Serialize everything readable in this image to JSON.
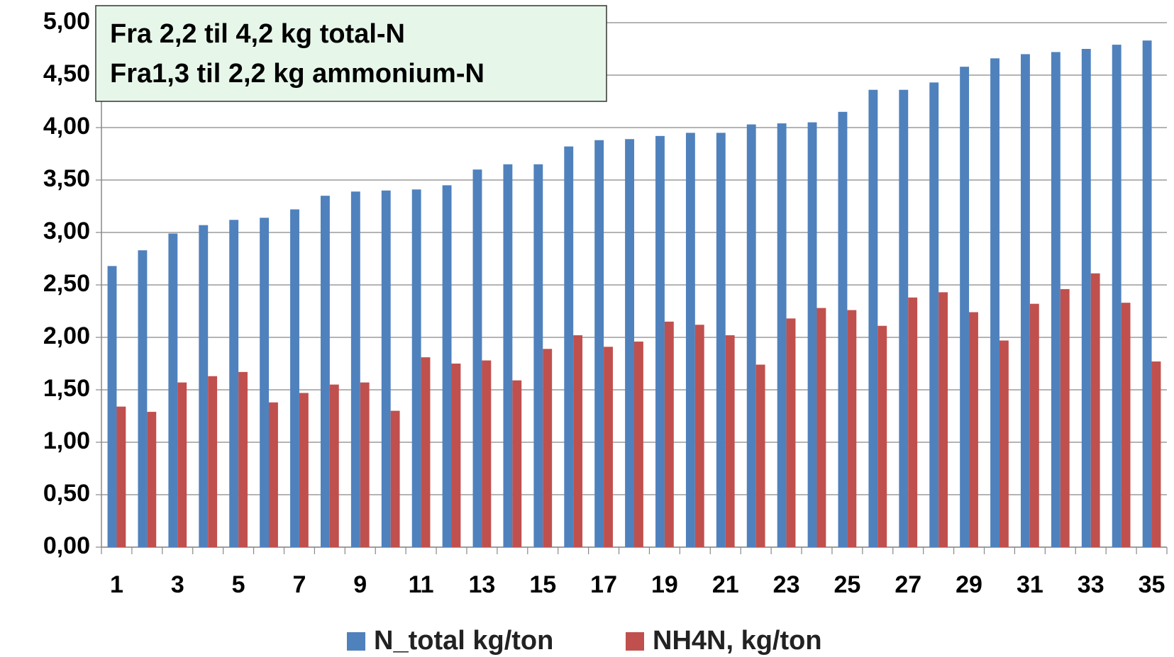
{
  "chart_data": {
    "type": "bar",
    "annotation": [
      "Fra 2,2 til 4,2 kg total-N",
      "Fra1,3 til 2,2 kg ammonium-N"
    ],
    "categories": [
      "1",
      null,
      "3",
      null,
      "5",
      null,
      "7",
      null,
      "9",
      null,
      "11",
      null,
      "13",
      null,
      "15",
      null,
      "17",
      null,
      "19",
      null,
      "21",
      null,
      "23",
      null,
      "25",
      null,
      "27",
      null,
      "29",
      null,
      "31",
      null,
      "33",
      null,
      "35"
    ],
    "series": [
      {
        "name": "N_total kg/ton",
        "color": "#4f81bd",
        "values": [
          2.68,
          2.83,
          2.99,
          3.07,
          3.12,
          3.14,
          3.22,
          3.35,
          3.39,
          3.4,
          3.41,
          3.45,
          3.6,
          3.65,
          3.65,
          3.82,
          3.88,
          3.89,
          3.92,
          3.95,
          3.95,
          4.03,
          4.04,
          4.05,
          4.15,
          4.36,
          4.36,
          4.43,
          4.58,
          4.66,
          4.7,
          4.72,
          4.75,
          4.79,
          4.83
        ]
      },
      {
        "name": "NH4N, kg/ton",
        "color": "#c0504d",
        "values": [
          1.34,
          1.29,
          1.57,
          1.63,
          1.67,
          1.38,
          1.47,
          1.55,
          1.57,
          1.3,
          1.81,
          1.75,
          1.78,
          1.59,
          1.89,
          2.02,
          1.91,
          1.96,
          2.15,
          2.12,
          2.02,
          1.74,
          2.18,
          2.28,
          2.26,
          2.11,
          2.38,
          2.43,
          2.24,
          1.97,
          2.32,
          2.46,
          2.61,
          2.33,
          1.77
        ]
      }
    ],
    "ylim": [
      0,
      5
    ],
    "yticks": [
      {
        "value": 0,
        "label": "0,00"
      },
      {
        "value": 0.5,
        "label": "0,50"
      },
      {
        "value": 1,
        "label": "1,00"
      },
      {
        "value": 1.5,
        "label": "1,50"
      },
      {
        "value": 2,
        "label": "2,00"
      },
      {
        "value": 2.5,
        "label": "2,50"
      },
      {
        "value": 3,
        "label": "3,00"
      },
      {
        "value": 3.5,
        "label": "3,50"
      },
      {
        "value": 4,
        "label": "4,00"
      },
      {
        "value": 4.5,
        "label": "4,50"
      },
      {
        "value": 5,
        "label": "5,00"
      }
    ],
    "grid": true,
    "legend": "bottom"
  }
}
